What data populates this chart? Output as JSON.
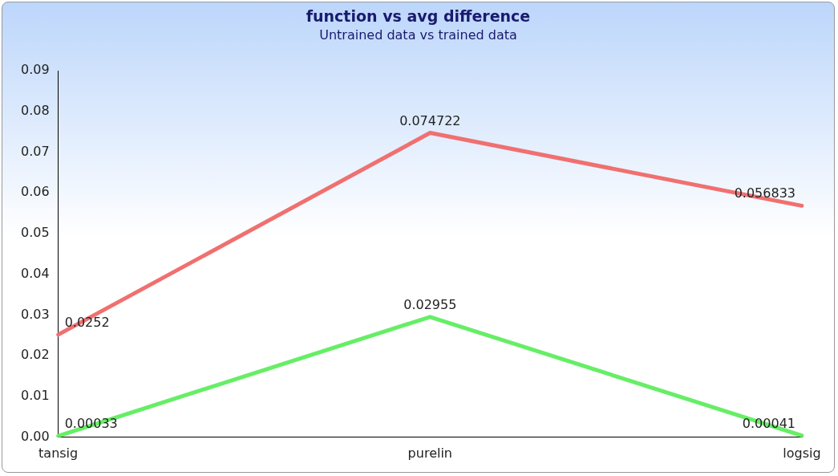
{
  "chart_data": {
    "type": "line",
    "title": "function vs avg difference",
    "subtitle": "Untrained data vs trained data",
    "categories": [
      "tansig",
      "purelin",
      "logsig"
    ],
    "series": [
      {
        "color": "#f07070",
        "values": [
          0.0252,
          0.074722,
          0.056833
        ]
      },
      {
        "color": "#66ee66",
        "values": [
          0.00033,
          0.02955,
          0.00041
        ]
      }
    ],
    "ylim": [
      0,
      0.09
    ],
    "yticks": [
      {
        "value": 0,
        "label": "0.00"
      },
      {
        "value": 0.01,
        "label": "0.01"
      },
      {
        "value": 0.02,
        "label": "0.02"
      },
      {
        "value": 0.03,
        "label": "0.03"
      },
      {
        "value": 0.04,
        "label": "0.04"
      },
      {
        "value": 0.05,
        "label": "0.05"
      },
      {
        "value": 0.06,
        "label": "0.06"
      },
      {
        "value": 0.07,
        "label": "0.07"
      },
      {
        "value": 0.08,
        "label": "0.08"
      },
      {
        "value": 0.09,
        "label": "0.09"
      }
    ],
    "data_labels": true,
    "grid": false,
    "legend": false,
    "marker": "none",
    "line_style": "solid"
  }
}
